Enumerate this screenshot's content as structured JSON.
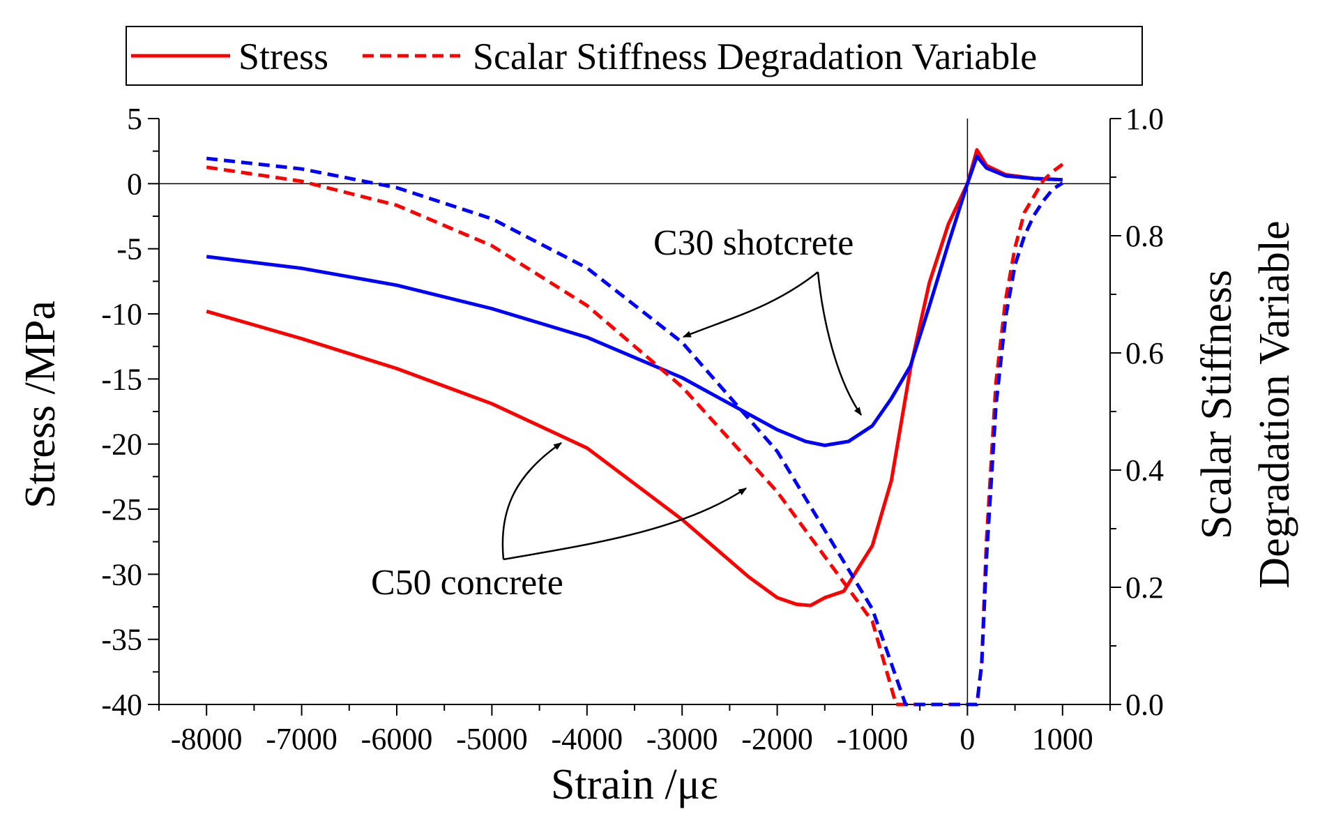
{
  "chart_data": {
    "type": "line",
    "title": "",
    "xlabel": "Strain /με",
    "ylabel": "Stress /MPa",
    "y2label_lines": [
      "Scalar Stiffness",
      "Degradation Variable"
    ],
    "xlim": [
      -8500,
      1500
    ],
    "ylim": [
      -40,
      5
    ],
    "y2lim": [
      0,
      1
    ],
    "x_ticks": [
      -8000,
      -7000,
      -6000,
      -5000,
      -4000,
      -3000,
      -2000,
      -1000,
      0,
      1000
    ],
    "x_tick_labels": [
      "-8000",
      "-7000",
      "-6000",
      "-5000",
      "-4000",
      "-3000",
      "-2000",
      "-1000",
      "0",
      "1000"
    ],
    "y_ticks": [
      5,
      0,
      -5,
      -10,
      -15,
      -20,
      -25,
      -30,
      -35,
      -40
    ],
    "y_tick_labels": [
      "5",
      "0",
      "-5",
      "-10",
      "-15",
      "-20",
      "-25",
      "-30",
      "-35",
      "-40"
    ],
    "y2_ticks": [
      1.0,
      0.8,
      0.6,
      0.4,
      0.2,
      0.0
    ],
    "y2_tick_labels": [
      "1.0",
      "0.8",
      "0.6",
      "0.4",
      "0.2",
      "0.0"
    ],
    "legend": {
      "position": "top",
      "entries": [
        {
          "label": "Stress",
          "style": "solid"
        },
        {
          "label": "Scalar Stiffness Degradation Variable",
          "style": "dashed"
        }
      ]
    },
    "annotations": [
      {
        "text": "C30 shotcrete"
      },
      {
        "text": "C50 concrete"
      }
    ],
    "series": [
      {
        "name": "C50 concrete stress",
        "axis": "left",
        "style": "solid",
        "color": "#ff0000",
        "points": [
          [
            -8000,
            -9.8
          ],
          [
            -7000,
            -11.9
          ],
          [
            -6000,
            -14.2
          ],
          [
            -5000,
            -16.9
          ],
          [
            -4000,
            -20.3
          ],
          [
            -3000,
            -25.8
          ],
          [
            -2300,
            -30.2
          ],
          [
            -2000,
            -31.8
          ],
          [
            -1800,
            -32.3
          ],
          [
            -1650,
            -32.4
          ],
          [
            -1500,
            -31.8
          ],
          [
            -1300,
            -31.3
          ],
          [
            -1000,
            -27.8
          ],
          [
            -800,
            -22.8
          ],
          [
            -600,
            -14.2
          ],
          [
            -400,
            -7.6
          ],
          [
            -200,
            -3.1
          ],
          [
            0,
            0
          ],
          [
            100,
            2.6
          ],
          [
            200,
            1.4
          ],
          [
            400,
            0.7
          ],
          [
            700,
            0.4
          ],
          [
            1000,
            0.3
          ]
        ]
      },
      {
        "name": "C30 shotcrete stress",
        "axis": "left",
        "style": "solid",
        "color": "#0000ff",
        "points": [
          [
            -8000,
            -5.6
          ],
          [
            -7000,
            -6.5
          ],
          [
            -6000,
            -7.8
          ],
          [
            -5000,
            -9.6
          ],
          [
            -4000,
            -11.8
          ],
          [
            -3000,
            -14.9
          ],
          [
            -2000,
            -18.9
          ],
          [
            -1700,
            -19.8
          ],
          [
            -1500,
            -20.1
          ],
          [
            -1250,
            -19.8
          ],
          [
            -1000,
            -18.6
          ],
          [
            -800,
            -16.5
          ],
          [
            -600,
            -14
          ],
          [
            -400,
            -9.4
          ],
          [
            -200,
            -4.6
          ],
          [
            0,
            0
          ],
          [
            100,
            2.1
          ],
          [
            200,
            1.2
          ],
          [
            400,
            0.6
          ],
          [
            700,
            0.4
          ],
          [
            1000,
            0.3
          ]
        ]
      },
      {
        "name": "C50 concrete degradation variable",
        "axis": "right",
        "style": "dashed",
        "color": "#ff0000",
        "points": [
          [
            -8000,
            0.917
          ],
          [
            -7000,
            0.893
          ],
          [
            -6000,
            0.852
          ],
          [
            -5000,
            0.783
          ],
          [
            -4000,
            0.681
          ],
          [
            -3000,
            0.542
          ],
          [
            -2000,
            0.363
          ],
          [
            -1000,
            0.142
          ],
          [
            -750,
            0
          ],
          [
            0,
            0
          ],
          [
            100,
            0
          ],
          [
            150,
            0.07
          ],
          [
            200,
            0.28
          ],
          [
            300,
            0.55
          ],
          [
            400,
            0.69
          ],
          [
            500,
            0.78
          ],
          [
            600,
            0.84
          ],
          [
            800,
            0.895
          ],
          [
            900,
            0.91
          ],
          [
            1000,
            0.922
          ]
        ]
      },
      {
        "name": "C30 shotcrete degradation variable",
        "axis": "right",
        "style": "dashed",
        "color": "#0000ff",
        "points": [
          [
            -8000,
            0.932
          ],
          [
            -7000,
            0.914
          ],
          [
            -6000,
            0.882
          ],
          [
            -5000,
            0.829
          ],
          [
            -4000,
            0.745
          ],
          [
            -3000,
            0.618
          ],
          [
            -2000,
            0.432
          ],
          [
            -1000,
            0.163
          ],
          [
            -650,
            0
          ],
          [
            0,
            0
          ],
          [
            100,
            0
          ],
          [
            150,
            0.07
          ],
          [
            200,
            0.25
          ],
          [
            300,
            0.51
          ],
          [
            400,
            0.66
          ],
          [
            500,
            0.75
          ],
          [
            600,
            0.8
          ],
          [
            700,
            0.835
          ],
          [
            800,
            0.86
          ],
          [
            900,
            0.88
          ],
          [
            1000,
            0.89
          ]
        ]
      }
    ]
  }
}
